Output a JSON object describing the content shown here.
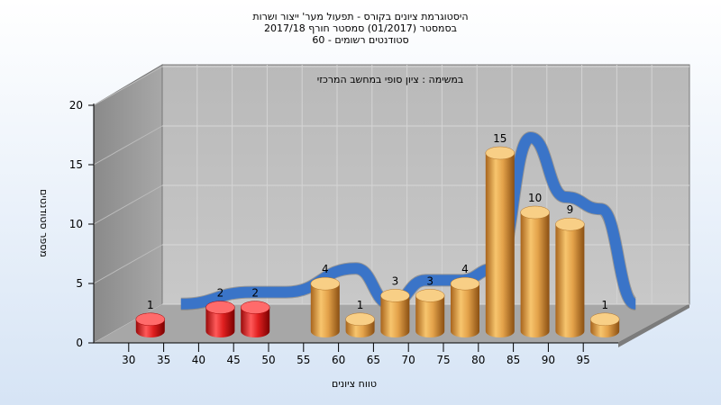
{
  "chart_data": {
    "type": "bar",
    "title_lines": [
      "היסטוגרמת ציונים בקורס - תפעול מער' ייצור ושרות",
      "בסמסטר  (01/2017)  סמסטר חורף 2017/18",
      "סטודנטים רשומים - 60"
    ],
    "subtitle": "במשימה : ציון סופי במחשב המרכזי",
    "xlabel": "טווח ציונים",
    "ylabel": "מספר סטודנטים",
    "x_ticks": [
      "30",
      "35",
      "40",
      "45",
      "50",
      "55",
      "60",
      "65",
      "70",
      "75",
      "80",
      "85",
      "90",
      "95"
    ],
    "y_ticks": [
      "0",
      "5",
      "10",
      "15",
      "20"
    ],
    "ylim": [
      0,
      20
    ],
    "categories": [
      "30",
      "40",
      "45",
      "55",
      "60",
      "65",
      "70",
      "75",
      "80",
      "85",
      "90",
      "95"
    ],
    "values": [
      1,
      2,
      2,
      4,
      1,
      3,
      3,
      4,
      15,
      10,
      9,
      1
    ],
    "bar_colors": [
      "#e02020",
      "#e02020",
      "#e02020",
      "#e3a24a",
      "#e3a24a",
      "#e3a24a",
      "#e3a24a",
      "#e3a24a",
      "#e3a24a",
      "#e3a24a",
      "#e3a24a",
      "#e3a24a"
    ],
    "ribbon_color": "#3a74c8",
    "legend": "none",
    "grid": true
  }
}
